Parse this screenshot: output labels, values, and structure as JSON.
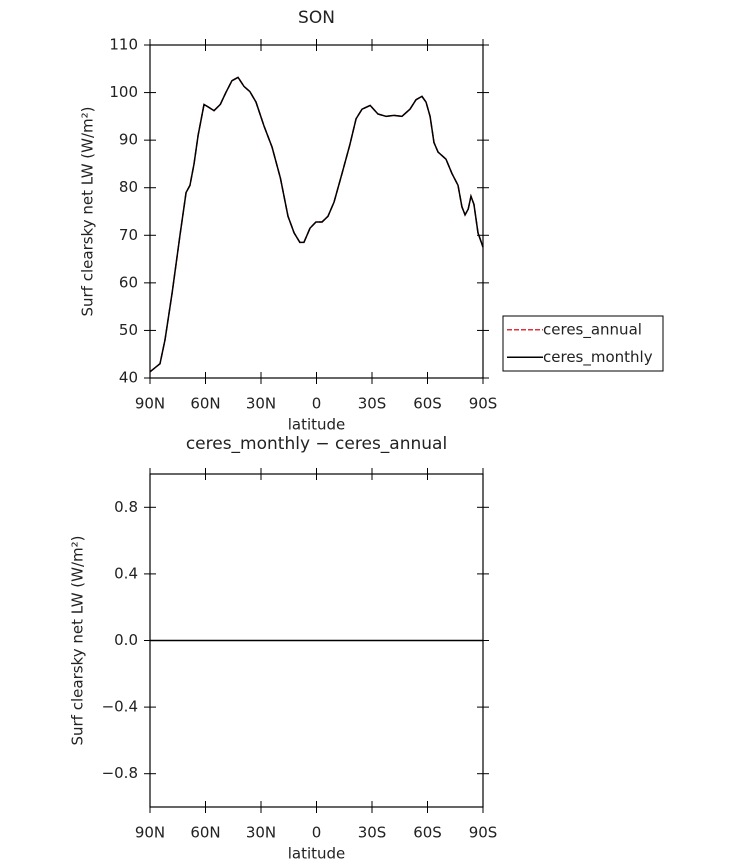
{
  "chart_data": [
    {
      "type": "line",
      "title": "SON",
      "xlabel": "latitude",
      "ylabel": "Surf clearsky net LW (W/m²)",
      "x": [
        90,
        84.6,
        81.9,
        78,
        73.8,
        70.5,
        68.4,
        66.2,
        64,
        60.8,
        58.6,
        55.4,
        52,
        49,
        45.7,
        42.4,
        39.2,
        36,
        32.7,
        28.4,
        24,
        19.5,
        15.4,
        12.1,
        9,
        6.8,
        3.5,
        0.3,
        -3,
        -6.2,
        -9.5,
        -13.8,
        -18,
        -21.4,
        -24.6,
        -29,
        -33.2,
        -37.6,
        -41.9,
        -46.2,
        -50.5,
        -53.8,
        -57,
        -59.2,
        -61.4,
        -63.5,
        -65.7,
        -70,
        -73.2,
        -76.5,
        -78.6,
        -80.3,
        -82,
        -83.5,
        -85.1,
        -87.3,
        -90
      ],
      "series": [
        {
          "name": "ceres_annual",
          "color": "#e0303a",
          "dashed": true,
          "values": [
            41.3,
            43,
            48,
            58,
            70,
            79,
            80.5,
            85,
            91,
            97.5,
            97,
            96.2,
            97.5,
            100,
            102.5,
            103.2,
            101.3,
            100.2,
            98,
            93,
            88.5,
            82,
            74,
            70.5,
            68.5,
            68.5,
            71.5,
            72.8,
            72.8,
            74,
            77,
            83,
            89,
            94.5,
            96.5,
            97.3,
            95.5,
            95,
            95.2,
            95,
            96.5,
            98.5,
            99.2,
            98,
            95,
            89.5,
            87.5,
            86,
            83,
            80.5,
            76,
            74.3,
            75.5,
            78.2,
            76.5,
            70.5,
            67.5
          ]
        },
        {
          "name": "ceres_monthly",
          "color": "#000000",
          "dashed": false,
          "values": [
            41.3,
            43,
            48,
            58,
            70,
            79,
            80.5,
            85,
            91,
            97.5,
            97,
            96.2,
            97.5,
            100,
            102.5,
            103.2,
            101.3,
            100.2,
            98,
            93,
            88.5,
            82,
            74,
            70.5,
            68.5,
            68.5,
            71.5,
            72.8,
            72.8,
            74,
            77,
            83,
            89,
            94.5,
            96.5,
            97.3,
            95.5,
            95,
            95.2,
            95,
            96.5,
            98.5,
            99.2,
            98,
            95,
            89.5,
            87.5,
            86,
            83,
            80.5,
            76,
            74.3,
            75.5,
            78.2,
            76.5,
            70.5,
            67.5
          ]
        }
      ],
      "xlim": [
        90,
        -90
      ],
      "xticks": [
        {
          "value": 90,
          "label": "90N"
        },
        {
          "value": 60,
          "label": "60N"
        },
        {
          "value": 30,
          "label": "30N"
        },
        0,
        {
          "value": -30,
          "label": "30S"
        },
        {
          "value": -60,
          "label": "60S"
        },
        {
          "value": -90,
          "label": "90S"
        }
      ],
      "ylim": [
        40,
        110
      ],
      "yticks": [
        40,
        50,
        60,
        70,
        80,
        90,
        100,
        110
      ],
      "legend": "outside-right"
    },
    {
      "type": "line",
      "title": "ceres_monthly − ceres_annual",
      "xlabel": "latitude",
      "ylabel": "Surf clearsky net LW (W/m²)",
      "x": [
        90,
        -90
      ],
      "series": [
        {
          "color": "#000000",
          "dashed": false,
          "values": [
            0,
            0
          ]
        }
      ],
      "xlim": [
        90,
        -90
      ],
      "xticks": [
        {
          "value": 90,
          "label": "90N"
        },
        {
          "value": 60,
          "label": "60N"
        },
        {
          "value": 30,
          "label": "30N"
        },
        0,
        {
          "value": -30,
          "label": "30S"
        },
        {
          "value": -60,
          "label": "60S"
        },
        {
          "value": -90,
          "label": "90S"
        }
      ],
      "ylim": [
        -1,
        1
      ],
      "yticks": [
        {
          "value": -0.8,
          "label": "−0.8"
        },
        {
          "value": -0.4,
          "label": "−0.4"
        },
        {
          "value": 0,
          "label": "0.0"
        },
        0.4,
        0.8
      ]
    }
  ]
}
